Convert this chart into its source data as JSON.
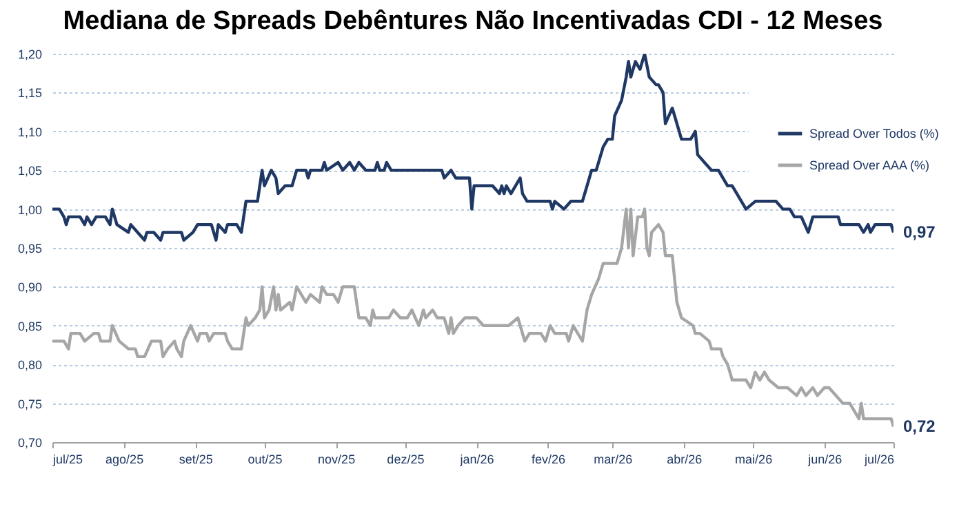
{
  "chart_data": {
    "type": "line",
    "title": "Mediana de Spreads Debêntures Não Incentivadas CDI -  12 Meses",
    "xlim": [
      "2025-07-01",
      "2026-07-01"
    ],
    "xticks": [
      {
        "value": "2025-07-01",
        "label": "jul/25"
      },
      {
        "value": "2025-08-01",
        "label": "ago/25"
      },
      {
        "value": "2025-09-01",
        "label": "set/25"
      },
      {
        "value": "2025-10-01",
        "label": "out/25"
      },
      {
        "value": "2025-11-01",
        "label": "nov/25"
      },
      {
        "value": "2025-12-01",
        "label": "dez/25"
      },
      {
        "value": "2026-01-01",
        "label": "jan/26"
      },
      {
        "value": "2026-02-01",
        "label": "fev/26"
      },
      {
        "value": "2026-03-01",
        "label": "mar/26"
      },
      {
        "value": "2026-04-01",
        "label": "abr/26"
      },
      {
        "value": "2026-05-01",
        "label": "mai/26"
      },
      {
        "value": "2026-06-01",
        "label": "jun/26"
      },
      {
        "value": "2026-07-01",
        "label": "jul/26"
      }
    ],
    "ylim": [
      0.7,
      1.2
    ],
    "yticks": [
      {
        "value": 0.7,
        "label": "0,70"
      },
      {
        "value": 0.75,
        "label": "0,75"
      },
      {
        "value": 0.8,
        "label": "0,80"
      },
      {
        "value": 0.85,
        "label": "0,85"
      },
      {
        "value": 0.9,
        "label": "0,90"
      },
      {
        "value": 0.95,
        "label": "0,95"
      },
      {
        "value": 1.0,
        "label": "1,00"
      },
      {
        "value": 1.05,
        "label": "1,05"
      },
      {
        "value": 1.1,
        "label": "1,10"
      },
      {
        "value": 1.15,
        "label": "1,15"
      },
      {
        "value": 1.2,
        "label": "1,20"
      }
    ],
    "grid": "y",
    "legend": "top right",
    "annotations": [
      {
        "text": "0,97",
        "x": "2026-07-01",
        "y": 0.97
      },
      {
        "text": "0,72",
        "x": "2026-07-01",
        "y": 0.72
      }
    ],
    "series": [
      {
        "name": "Spread Over Todos (%)",
        "color": "#1f3864",
        "x": [
          "2025-07-01",
          "2025-07-04",
          "2025-07-06",
          "2025-07-07",
          "2025-07-08",
          "2025-07-13",
          "2025-07-15",
          "2025-07-16",
          "2025-07-18",
          "2025-07-20",
          "2025-07-24",
          "2025-07-26",
          "2025-07-27",
          "2025-07-29",
          "2025-08-03",
          "2025-08-04",
          "2025-08-07",
          "2025-08-10",
          "2025-08-11",
          "2025-08-14",
          "2025-08-17",
          "2025-08-18",
          "2025-08-26",
          "2025-08-27",
          "2025-08-31",
          "2025-09-02",
          "2025-09-08",
          "2025-09-10",
          "2025-09-11",
          "2025-09-14",
          "2025-09-15",
          "2025-09-19",
          "2025-09-21",
          "2025-09-23",
          "2025-09-28",
          "2025-09-30",
          "2025-10-01",
          "2025-10-04",
          "2025-10-06",
          "2025-10-07",
          "2025-10-10",
          "2025-10-13",
          "2025-10-15",
          "2025-10-19",
          "2025-10-20",
          "2025-10-21",
          "2025-10-26",
          "2025-10-27",
          "2025-10-28",
          "2025-11-02",
          "2025-11-04",
          "2025-11-07",
          "2025-11-09",
          "2025-11-11",
          "2025-11-14",
          "2025-11-18",
          "2025-11-19",
          "2025-11-20",
          "2025-11-22",
          "2025-11-23",
          "2025-11-25",
          "2025-12-17",
          "2025-12-18",
          "2025-12-21",
          "2025-12-23",
          "2025-12-29",
          "2025-12-30",
          "2025-12-31",
          "2026-01-08",
          "2026-01-11",
          "2026-01-12",
          "2026-01-13",
          "2026-01-14",
          "2026-01-16",
          "2026-01-20",
          "2026-01-21",
          "2026-01-23",
          "2026-02-02",
          "2026-02-03",
          "2026-02-04",
          "2026-02-08",
          "2026-02-11",
          "2026-02-16",
          "2026-02-18",
          "2026-02-20",
          "2026-02-22",
          "2026-02-25",
          "2026-02-27",
          "2026-03-01",
          "2026-03-02",
          "2026-03-05",
          "2026-03-07",
          "2026-03-08",
          "2026-03-09",
          "2026-03-11",
          "2026-03-13",
          "2026-03-15",
          "2026-03-17",
          "2026-03-20",
          "2026-03-21",
          "2026-03-23",
          "2026-03-24",
          "2026-03-27",
          "2026-03-28",
          "2026-03-31",
          "2026-04-04",
          "2026-04-06",
          "2026-04-07",
          "2026-04-10",
          "2026-04-13",
          "2026-04-16",
          "2026-04-20",
          "2026-04-22",
          "2026-04-24",
          "2026-04-28",
          "2026-05-02",
          "2026-05-11",
          "2026-05-14",
          "2026-05-17",
          "2026-05-19",
          "2026-05-22",
          "2026-05-25",
          "2026-05-27",
          "2026-06-07",
          "2026-06-08",
          "2026-06-16",
          "2026-06-18",
          "2026-06-20",
          "2026-06-21",
          "2026-06-23",
          "2026-06-30",
          "2026-07-01"
        ],
        "values": [
          1.0,
          1.0,
          0.99,
          0.98,
          0.99,
          0.99,
          0.98,
          0.99,
          0.98,
          0.99,
          0.99,
          0.98,
          1.0,
          0.98,
          0.97,
          0.98,
          0.97,
          0.96,
          0.97,
          0.97,
          0.96,
          0.97,
          0.97,
          0.96,
          0.97,
          0.98,
          0.98,
          0.96,
          0.98,
          0.97,
          0.98,
          0.98,
          0.97,
          1.01,
          1.01,
          1.05,
          1.03,
          1.05,
          1.04,
          1.02,
          1.03,
          1.03,
          1.05,
          1.05,
          1.04,
          1.05,
          1.05,
          1.06,
          1.05,
          1.06,
          1.05,
          1.06,
          1.05,
          1.06,
          1.05,
          1.05,
          1.06,
          1.05,
          1.05,
          1.06,
          1.05,
          1.05,
          1.04,
          1.05,
          1.04,
          1.04,
          1.0,
          1.03,
          1.03,
          1.02,
          1.03,
          1.02,
          1.03,
          1.02,
          1.04,
          1.02,
          1.01,
          1.01,
          1.0,
          1.01,
          1.0,
          1.01,
          1.01,
          1.03,
          1.05,
          1.05,
          1.08,
          1.09,
          1.09,
          1.12,
          1.14,
          1.17,
          1.19,
          1.17,
          1.19,
          1.18,
          1.2,
          1.17,
          1.16,
          1.16,
          1.15,
          1.11,
          1.13,
          1.12,
          1.09,
          1.09,
          1.1,
          1.07,
          1.06,
          1.05,
          1.05,
          1.03,
          1.03,
          1.02,
          1.0,
          1.01,
          1.01,
          1.0,
          1.0,
          0.99,
          0.99,
          0.97,
          0.99,
          0.99,
          0.98,
          0.98,
          0.97,
          0.98,
          0.97,
          0.98,
          0.98,
          0.97
        ]
      },
      {
        "name": "Spread Over AAA (%)",
        "color": "#a6a6a6",
        "x": [
          "2025-07-01",
          "2025-07-06",
          "2025-07-08",
          "2025-07-09",
          "2025-07-13",
          "2025-07-15",
          "2025-07-19",
          "2025-07-21",
          "2025-07-22",
          "2025-07-26",
          "2025-07-27",
          "2025-07-30",
          "2025-08-03",
          "2025-08-06",
          "2025-08-07",
          "2025-08-10",
          "2025-08-13",
          "2025-08-17",
          "2025-08-18",
          "2025-08-20",
          "2025-08-23",
          "2025-08-24",
          "2025-08-26",
          "2025-08-27",
          "2025-08-30",
          "2025-09-02",
          "2025-09-03",
          "2025-09-06",
          "2025-09-07",
          "2025-09-09",
          "2025-09-14",
          "2025-09-15",
          "2025-09-17",
          "2025-09-21",
          "2025-09-23",
          "2025-09-24",
          "2025-09-27",
          "2025-09-29",
          "2025-09-30",
          "2025-10-01",
          "2025-10-03",
          "2025-10-05",
          "2025-10-06",
          "2025-10-07",
          "2025-10-08",
          "2025-10-12",
          "2025-10-13",
          "2025-10-15",
          "2025-10-17",
          "2025-10-19",
          "2025-10-21",
          "2025-10-25",
          "2025-10-26",
          "2025-10-28",
          "2025-10-31",
          "2025-11-02",
          "2025-11-04",
          "2025-11-09",
          "2025-11-10",
          "2025-11-11",
          "2025-11-14",
          "2025-11-16",
          "2025-11-17",
          "2025-11-18",
          "2025-11-24",
          "2025-11-26",
          "2025-11-29",
          "2025-12-02",
          "2025-12-04",
          "2025-12-07",
          "2025-12-09",
          "2025-12-10",
          "2025-12-13",
          "2025-12-15",
          "2025-12-18",
          "2025-12-20",
          "2025-12-21",
          "2025-12-22",
          "2025-12-24",
          "2025-12-27",
          "2026-01-01",
          "2026-01-04",
          "2026-01-15",
          "2026-01-19",
          "2026-01-22",
          "2026-01-24",
          "2026-01-29",
          "2026-01-31",
          "2026-02-02",
          "2026-02-04",
          "2026-02-09",
          "2026-02-10",
          "2026-02-12",
          "2026-02-14",
          "2026-02-16",
          "2026-02-18",
          "2026-02-20",
          "2026-02-23",
          "2026-02-25",
          "2026-03-03",
          "2026-03-05",
          "2026-03-07",
          "2026-03-08",
          "2026-03-09",
          "2026-03-10",
          "2026-03-12",
          "2026-03-14",
          "2026-03-15",
          "2026-03-16",
          "2026-03-17",
          "2026-03-18",
          "2026-03-21",
          "2026-03-23",
          "2026-03-24",
          "2026-03-27",
          "2026-03-29",
          "2026-03-31",
          "2026-04-05",
          "2026-04-06",
          "2026-04-08",
          "2026-04-12",
          "2026-04-13",
          "2026-04-17",
          "2026-04-18",
          "2026-04-20",
          "2026-04-22",
          "2026-04-28",
          "2026-04-30",
          "2026-05-02",
          "2026-05-04",
          "2026-05-06",
          "2026-05-08",
          "2026-05-12",
          "2026-05-16",
          "2026-05-20",
          "2026-05-22",
          "2026-05-24",
          "2026-05-27",
          "2026-05-29",
          "2026-06-01",
          "2026-06-03",
          "2026-06-06",
          "2026-06-09",
          "2026-06-12",
          "2026-06-14",
          "2026-06-16",
          "2026-06-17",
          "2026-06-18",
          "2026-06-30",
          "2026-07-01"
        ],
        "values": [
          0.83,
          0.83,
          0.82,
          0.84,
          0.84,
          0.83,
          0.84,
          0.84,
          0.83,
          0.83,
          0.85,
          0.83,
          0.82,
          0.82,
          0.81,
          0.81,
          0.83,
          0.83,
          0.81,
          0.82,
          0.83,
          0.82,
          0.81,
          0.83,
          0.85,
          0.83,
          0.84,
          0.84,
          0.83,
          0.84,
          0.84,
          0.83,
          0.82,
          0.82,
          0.86,
          0.85,
          0.86,
          0.87,
          0.9,
          0.86,
          0.87,
          0.9,
          0.87,
          0.89,
          0.87,
          0.88,
          0.87,
          0.9,
          0.89,
          0.88,
          0.89,
          0.88,
          0.9,
          0.89,
          0.89,
          0.88,
          0.9,
          0.9,
          0.88,
          0.86,
          0.86,
          0.85,
          0.87,
          0.86,
          0.86,
          0.87,
          0.86,
          0.86,
          0.87,
          0.85,
          0.87,
          0.86,
          0.87,
          0.86,
          0.86,
          0.84,
          0.86,
          0.84,
          0.85,
          0.86,
          0.86,
          0.85,
          0.85,
          0.86,
          0.83,
          0.84,
          0.84,
          0.83,
          0.85,
          0.84,
          0.84,
          0.83,
          0.85,
          0.84,
          0.83,
          0.87,
          0.89,
          0.91,
          0.93,
          0.93,
          0.95,
          1.0,
          0.95,
          1.0,
          0.94,
          0.99,
          0.99,
          1.0,
          0.95,
          0.94,
          0.97,
          0.98,
          0.97,
          0.94,
          0.94,
          0.88,
          0.86,
          0.85,
          0.84,
          0.84,
          0.83,
          0.82,
          0.82,
          0.81,
          0.8,
          0.78,
          0.78,
          0.77,
          0.79,
          0.78,
          0.79,
          0.78,
          0.77,
          0.77,
          0.76,
          0.77,
          0.76,
          0.77,
          0.76,
          0.77,
          0.77,
          0.76,
          0.75,
          0.75,
          0.74,
          0.73,
          0.75,
          0.73,
          0.73,
          0.72
        ]
      }
    ]
  }
}
